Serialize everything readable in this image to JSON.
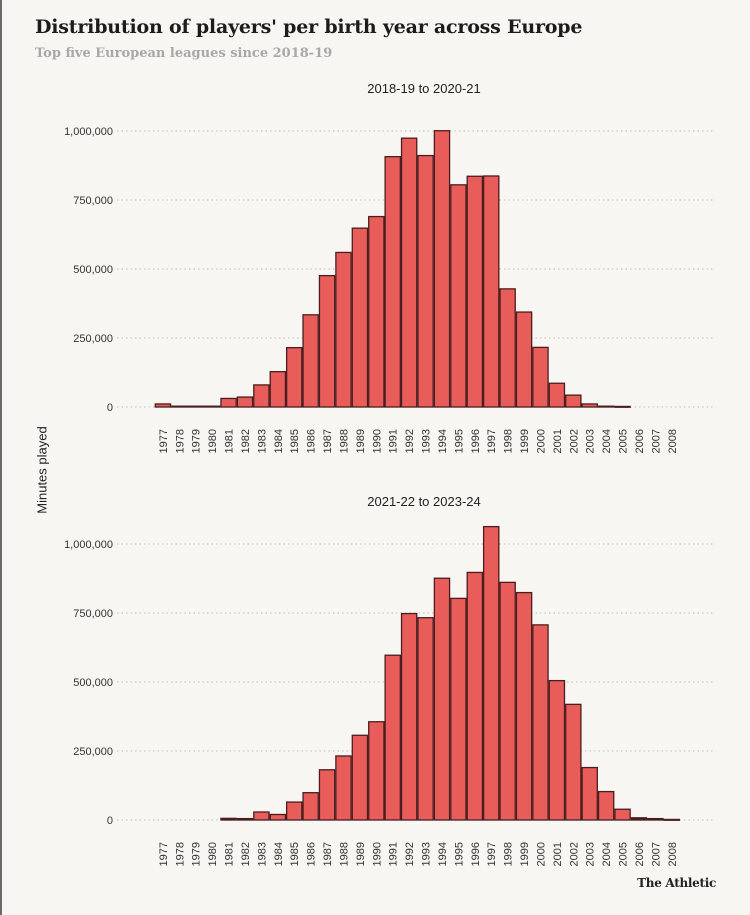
{
  "header": {
    "title": "Distribution of players' per birth year across Europe",
    "subtitle": "Top five European leagues since 2018-19"
  },
  "footer": {
    "logo": "The Athletic"
  },
  "colors": {
    "bar_fill": "#e85c5a",
    "bar_stroke": "#4a1e1e",
    "grid": "#c9c9c6",
    "background": "#f7f6f2"
  },
  "chart_data": [
    {
      "type": "bar",
      "title": "2018-19 to 2020-21",
      "xlabel": "",
      "ylabel": "Minutes played",
      "ylim": [
        0,
        1000000
      ],
      "yticks": [
        0,
        250000,
        500000,
        750000,
        1000000
      ],
      "ytick_labels": [
        "0",
        "250,000",
        "500,000",
        "750,000",
        "1,000,000"
      ],
      "grid": true,
      "categories": [
        "1977",
        "1978",
        "1979",
        "1980",
        "1981",
        "1982",
        "1983",
        "1984",
        "1985",
        "1986",
        "1987",
        "1988",
        "1989",
        "1990",
        "1991",
        "1992",
        "1993",
        "1994",
        "1995",
        "1996",
        "1997",
        "1998",
        "1999",
        "2000",
        "2001",
        "2002",
        "2003",
        "2004",
        "2005",
        "2006",
        "2007",
        "2008"
      ],
      "values": [
        11000,
        3000,
        3000,
        3000,
        31000,
        36000,
        80000,
        128000,
        215000,
        334000,
        476000,
        560000,
        648000,
        690000,
        907000,
        974000,
        911000,
        1001000,
        805000,
        836000,
        837000,
        428000,
        344000,
        216000,
        86000,
        43000,
        11000,
        3000,
        2000,
        0,
        0,
        0
      ]
    },
    {
      "type": "bar",
      "title": "2021-22 to 2023-24",
      "xlabel": "",
      "ylabel": "Minutes played",
      "ylim": [
        0,
        1000000
      ],
      "yticks": [
        0,
        250000,
        500000,
        750000,
        1000000
      ],
      "ytick_labels": [
        "0",
        "250,000",
        "500,000",
        "750,000",
        "1,000,000"
      ],
      "grid": true,
      "categories": [
        "1977",
        "1978",
        "1979",
        "1980",
        "1981",
        "1982",
        "1983",
        "1984",
        "1985",
        "1986",
        "1987",
        "1988",
        "1989",
        "1990",
        "1991",
        "1992",
        "1993",
        "1994",
        "1995",
        "1996",
        "1997",
        "1998",
        "1999",
        "2000",
        "2001",
        "2002",
        "2003",
        "2004",
        "2005",
        "2006",
        "2007",
        "2008"
      ],
      "values": [
        0,
        0,
        0,
        0,
        6000,
        5000,
        29000,
        20000,
        65000,
        99000,
        182000,
        232000,
        307000,
        356000,
        597000,
        748000,
        733000,
        876000,
        803000,
        897000,
        1063000,
        861000,
        824000,
        707000,
        505000,
        419000,
        190000,
        103000,
        39000,
        8000,
        5000,
        2000
      ]
    }
  ]
}
